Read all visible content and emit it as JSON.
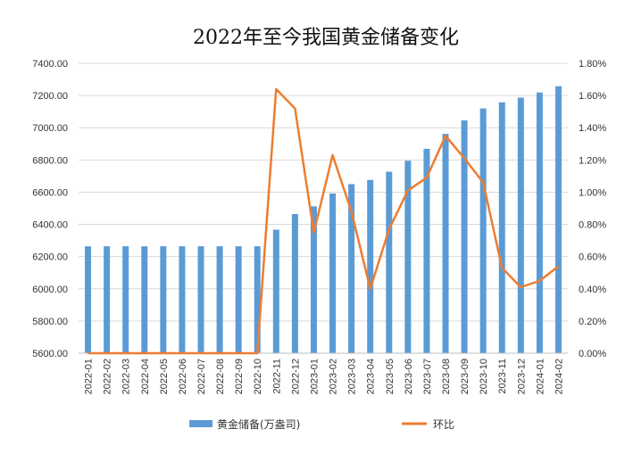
{
  "chart_data": {
    "type": "bar",
    "title": "2022年至今我国黄金储备变化",
    "categories": [
      "2022-01",
      "2022-02",
      "2022-03",
      "2022-04",
      "2022-05",
      "2022-06",
      "2022-07",
      "2022-08",
      "2022-09",
      "2022-10",
      "2022-11",
      "2022-12",
      "2023-01",
      "2023-02",
      "2023-03",
      "2023-04",
      "2023-05",
      "2023-06",
      "2023-07",
      "2023-08",
      "2023-09",
      "2023-10",
      "2023-11",
      "2023-12",
      "2024-01",
      "2024-02"
    ],
    "series": [
      {
        "name": "黄金储备(万盎司)",
        "type": "bar",
        "axis": "left",
        "color": "#5b9bd5",
        "values": [
          6264,
          6264,
          6264,
          6264,
          6264,
          6264,
          6264,
          6264,
          6264,
          6264,
          6367,
          6464,
          6512,
          6592,
          6650,
          6676,
          6727,
          6795,
          6869,
          6962,
          7046,
          7120,
          7158,
          7187,
          7219,
          7258
        ]
      },
      {
        "name": "环比",
        "type": "line",
        "axis": "right",
        "color": "#ed7d31",
        "values": [
          0,
          0,
          0,
          0,
          0,
          0,
          0,
          0,
          0,
          0,
          1.64,
          1.52,
          0.75,
          1.23,
          0.88,
          0.4,
          0.77,
          1.01,
          1.09,
          1.35,
          1.21,
          1.06,
          0.53,
          0.41,
          0.45,
          0.54
        ]
      }
    ],
    "y_left": {
      "min": 5600,
      "max": 7400,
      "ticks": [
        "5600.00",
        "5800.00",
        "6000.00",
        "6200.00",
        "6400.00",
        "6600.00",
        "6800.00",
        "7000.00",
        "7200.00",
        "7400.00"
      ]
    },
    "y_right": {
      "min": 0,
      "max": 1.8,
      "ticks": [
        "0.00%",
        "0.20%",
        "0.40%",
        "0.60%",
        "0.80%",
        "1.00%",
        "1.20%",
        "1.40%",
        "1.60%",
        "1.80%"
      ]
    },
    "grid": true,
    "legend_position": "bottom"
  }
}
